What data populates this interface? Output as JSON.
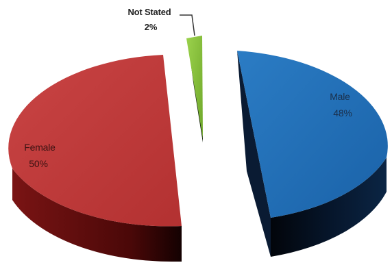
{
  "chart_data": {
    "type": "pie",
    "title": "",
    "categories": [
      "Male",
      "Female",
      "Not Stated"
    ],
    "values": [
      48,
      50,
      2
    ],
    "labels": [
      {
        "name": "Male",
        "value_text": "48%"
      },
      {
        "name": "Female",
        "value_text": "50%"
      },
      {
        "name": "Not Stated",
        "value_text": "2%"
      }
    ],
    "colors": {
      "Male": "#1f6fb8",
      "Female": "#c0393a",
      "Not Stated": "#8cc63f"
    },
    "style": "3d-exploded",
    "legend": "none"
  }
}
